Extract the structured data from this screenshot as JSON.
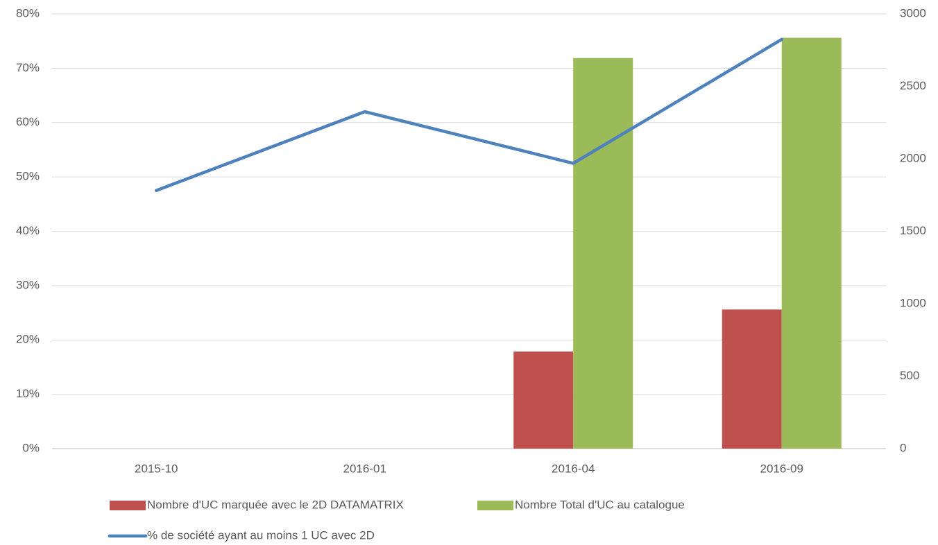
{
  "chart_data": {
    "type": "bar",
    "categories": [
      "2015-10",
      "2016-01",
      "2016-04",
      "2016-09"
    ],
    "series": [
      {
        "name": "Nombre d'UC marquée avec le 2D DATAMATRIX",
        "color": "#c0504d",
        "axis": "y2",
        "values": [
          null,
          null,
          670,
          960
        ]
      },
      {
        "name": "Nombre Total d'UC au catalogue",
        "color": "#9bbb59",
        "axis": "y2",
        "values": [
          null,
          null,
          2695,
          2835
        ]
      },
      {
        "name": "% de société ayant au moins 1 UC avec 2D",
        "color": "#4f81bd",
        "type": "line",
        "values": [
          47.5,
          62,
          52.5,
          75.3
        ]
      }
    ],
    "ylim": [
      0,
      80
    ],
    "yticks": [
      {
        "value": 0,
        "label": "0%"
      },
      {
        "value": 10,
        "label": "10%"
      },
      {
        "value": 20,
        "label": "20%"
      },
      {
        "value": 30,
        "label": "30%"
      },
      {
        "value": 40,
        "label": "40%"
      },
      {
        "value": 50,
        "label": "50%"
      },
      {
        "value": 60,
        "label": "60%"
      },
      {
        "value": 70,
        "label": "70%"
      },
      {
        "value": 80,
        "label": "80%"
      }
    ],
    "y2lim": [
      0,
      3000
    ],
    "y2ticks": [
      0,
      500,
      1000,
      1500,
      2000,
      2500,
      3000
    ],
    "grid": true
  }
}
